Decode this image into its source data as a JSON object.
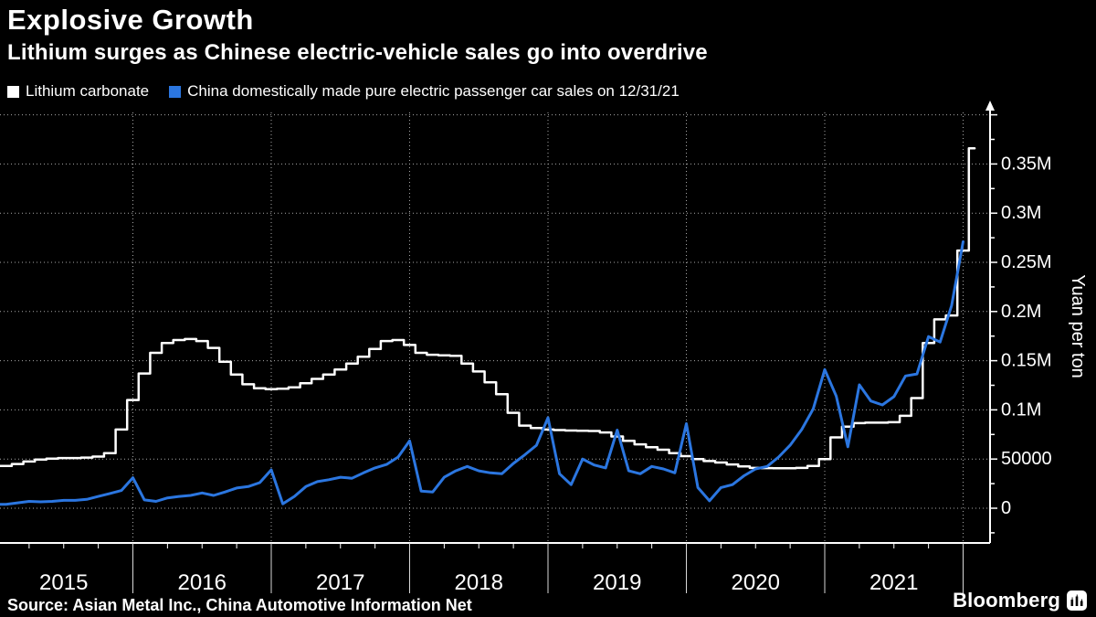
{
  "header": {
    "title": "Explosive Growth",
    "subtitle": "Lithium surges as Chinese electric-vehicle sales go into overdrive"
  },
  "footer": {
    "source": "Source: Asian Metal Inc., China Automotive Information Net"
  },
  "branding": {
    "logo_text": "Bloomberg"
  },
  "colors": {
    "background": "#000000",
    "axis": "#ffffff",
    "grid": "#a8a8a8",
    "lithium_line": "#ffffff",
    "ev_sales_line": "#2b76e0",
    "text": "#ffffff"
  },
  "chart_data": {
    "type": "line",
    "title": "Explosive Growth",
    "subtitle": "Lithium surges as Chinese electric-vehicle sales go into overdrive",
    "source": "Source: Asian Metal Inc., China Automotive Information Net",
    "ylabel": "Yuan per ton",
    "xlabel": "",
    "ylim": [
      0,
      400000
    ],
    "grid": "dotted",
    "legend_position": "top-left",
    "x_start": "2015-01",
    "x_freq": "monthly",
    "x_years": [
      "2015",
      "2016",
      "2017",
      "2018",
      "2019",
      "2020",
      "2021"
    ],
    "y_ticks": [
      {
        "value": 0,
        "label": "0"
      },
      {
        "value": 50000,
        "label": "50000"
      },
      {
        "value": 100000,
        "label": "0.1M"
      },
      {
        "value": 150000,
        "label": "0.15M"
      },
      {
        "value": 200000,
        "label": "0.2M"
      },
      {
        "value": 250000,
        "label": "0.25M"
      },
      {
        "value": 300000,
        "label": "0.3M"
      },
      {
        "value": 350000,
        "label": "0.35M"
      }
    ],
    "series": [
      {
        "name": "Lithium carbonate",
        "color": "#ffffff",
        "interpolation": "step",
        "stroke_width": 2.5,
        "monthly_values": [
          43000,
          45000,
          47500,
          49500,
          50500,
          51000,
          51000,
          51500,
          52500,
          56000,
          80000,
          110000,
          137000,
          158000,
          168000,
          171000,
          172000,
          170000,
          163000,
          149000,
          136000,
          126000,
          122000,
          121000,
          121500,
          123000,
          127000,
          131500,
          136000,
          141000,
          147000,
          154000,
          162000,
          170000,
          171000,
          166000,
          158000,
          156000,
          155500,
          155000,
          147000,
          139000,
          128000,
          116000,
          97000,
          84000,
          81500,
          80000,
          79500,
          79000,
          78800,
          78500,
          77000,
          73000,
          68500,
          65000,
          62000,
          59500,
          56000,
          53000,
          50000,
          48000,
          46500,
          44500,
          42500,
          41000,
          40800,
          40700,
          40700,
          41000,
          43000,
          50000,
          72000,
          83000,
          86500,
          87000,
          87000,
          87500,
          94000,
          112000,
          168000,
          192000,
          196000,
          262000,
          366000
        ]
      },
      {
        "name": "China domestically made pure electric passenger car sales on 12/31/21",
        "color": "#2b76e0",
        "interpolation": "linear",
        "stroke_width": 3,
        "monthly_values": [
          4000,
          5500,
          7000,
          6500,
          7000,
          8000,
          8000,
          9000,
          12000,
          15000,
          18000,
          31000,
          8500,
          7000,
          10500,
          12000,
          13000,
          15500,
          13000,
          16500,
          20500,
          22000,
          26000,
          39000,
          4500,
          12000,
          22000,
          27000,
          29000,
          31500,
          30500,
          36000,
          41000,
          44500,
          52000,
          68500,
          17500,
          16500,
          31500,
          38000,
          42500,
          38000,
          36000,
          35000,
          45500,
          54500,
          64000,
          92000,
          35000,
          24000,
          50000,
          44000,
          41000,
          79500,
          38000,
          35000,
          42500,
          40000,
          36000,
          86000,
          21000,
          7500,
          21000,
          24000,
          33000,
          40000,
          42500,
          52000,
          64000,
          80000,
          101000,
          141000,
          114000,
          62500,
          125500,
          109000,
          105000,
          113500,
          134500,
          136500,
          174500,
          169000,
          206000,
          271000
        ]
      }
    ]
  }
}
